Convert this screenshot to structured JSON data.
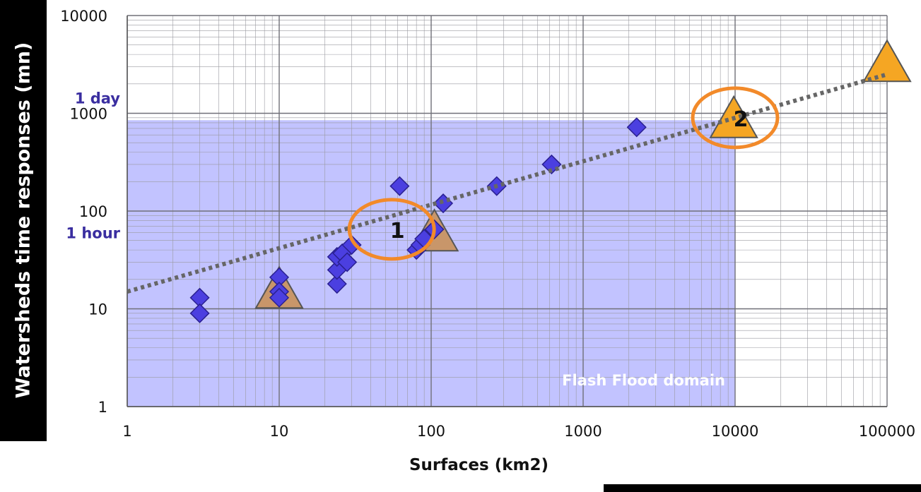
{
  "chart_data": {
    "type": "scatter",
    "xscale": "log",
    "yscale": "log",
    "xlim": [
      1,
      100000
    ],
    "ylim": [
      1,
      10000
    ],
    "xlabel": "Surfaces (km2)",
    "ylabel": "Watersheds time responses (mn)",
    "x_ticks": [
      "1",
      "10",
      "100",
      "1000",
      "10000",
      "100000"
    ],
    "y_ticks": [
      "1",
      "10",
      "100",
      "1000",
      "10000"
    ],
    "grid": true,
    "series": [
      {
        "marker": "diamond",
        "color": "#4b3fe0",
        "points": [
          {
            "x": 3,
            "y": 13
          },
          {
            "x": 3,
            "y": 9
          },
          {
            "x": 10,
            "y": 21
          },
          {
            "x": 10,
            "y": 15
          },
          {
            "x": 10,
            "y": 13
          },
          {
            "x": 24,
            "y": 18
          },
          {
            "x": 24,
            "y": 25
          },
          {
            "x": 24,
            "y": 34
          },
          {
            "x": 26,
            "y": 37
          },
          {
            "x": 28,
            "y": 30
          },
          {
            "x": 30,
            "y": 45
          },
          {
            "x": 62,
            "y": 180
          },
          {
            "x": 80,
            "y": 40
          },
          {
            "x": 85,
            "y": 45
          },
          {
            "x": 90,
            "y": 52
          },
          {
            "x": 105,
            "y": 65
          },
          {
            "x": 120,
            "y": 120
          },
          {
            "x": 270,
            "y": 180
          },
          {
            "x": 620,
            "y": 300
          },
          {
            "x": 2250,
            "y": 720
          }
        ]
      },
      {
        "marker": "triangle",
        "color": "#c8966a",
        "points": [
          {
            "x": 10,
            "y": 13
          },
          {
            "x": 105,
            "y": 50
          }
        ]
      },
      {
        "marker": "triangle",
        "color": "#f5a623",
        "points": [
          {
            "x": 9800,
            "y": 720
          },
          {
            "x": 100000,
            "y": 2700
          }
        ]
      }
    ],
    "trendline": {
      "style": "dotted",
      "color": "#666666",
      "from": {
        "x": 1,
        "y": 15
      },
      "to": {
        "x": 100000,
        "y": 2500
      }
    },
    "region": {
      "label": "Flash Flood domain",
      "x": [
        1,
        10000
      ],
      "y": [
        1,
        850
      ],
      "color": "#b7b8ff"
    },
    "annotations": [
      {
        "text": "1 day",
        "y": 1440,
        "color": "#3a2ea0"
      },
      {
        "text": "1 hour",
        "y": 60,
        "color": "#3a2ea0"
      }
    ],
    "circles": [
      {
        "label": "1",
        "x": 55,
        "y": 65
      },
      {
        "label": "2",
        "x": 10000,
        "y": 900
      }
    ]
  }
}
